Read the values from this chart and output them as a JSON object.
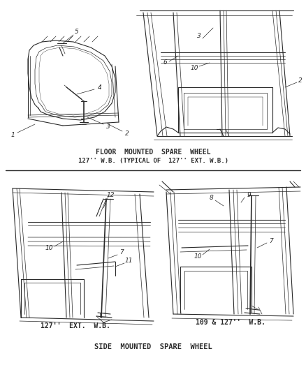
{
  "background_color": "#ffffff",
  "line_color": "#2a2a2a",
  "figsize": [
    4.38,
    5.33
  ],
  "dpi": 100,
  "top_label1": "FLOOR  MOUNTED  SPARE  WHEEL",
  "top_label2": "127'' W.B. (TYPICAL OF  127'' EXT. W.B.)",
  "bot_label": "SIDE  MOUNTED  SPARE  WHEEL",
  "sub_left": "127''  EXT.  W.B.",
  "sub_right": "109 & 127''  W.B.",
  "font_size_label": 7.0,
  "font_size_num": 6.5
}
